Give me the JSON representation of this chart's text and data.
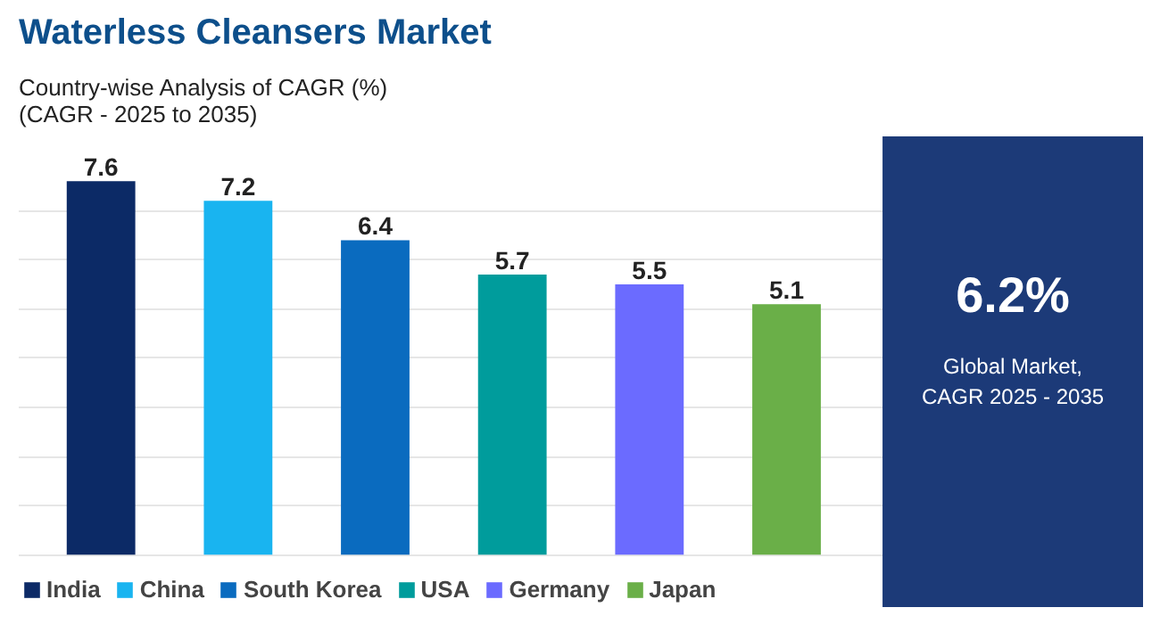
{
  "chart_data": {
    "type": "bar",
    "title": "Waterless Cleansers Market",
    "subtitle": "Country-wise Analysis of CAGR (%)\n(CAGR - 2025 to 2035)",
    "categories": [
      null,
      null,
      null,
      null,
      null,
      null
    ],
    "stacked": true,
    "series": [
      {
        "name": "India",
        "color": "#0c2a66",
        "values": [
          7.6,
          null,
          null,
          null,
          null,
          null
        ]
      },
      {
        "name": "China",
        "color": "#19b4f0",
        "values": [
          null,
          7.2,
          null,
          null,
          null,
          null
        ]
      },
      {
        "name": "South Korea",
        "color": "#0a6bbf",
        "values": [
          null,
          null,
          6.4,
          null,
          null,
          null
        ]
      },
      {
        "name": "USA",
        "color": "#009c9c",
        "values": [
          null,
          null,
          null,
          5.7,
          null,
          null
        ]
      },
      {
        "name": "Germany",
        "color": "#6b6bff",
        "values": [
          null,
          null,
          null,
          null,
          5.5,
          null
        ]
      },
      {
        "name": "Japan",
        "color": "#6aaf48",
        "values": [
          null,
          null,
          null,
          null,
          null,
          5.1
        ]
      }
    ],
    "data_labels": true,
    "legend": "bottom",
    "tick_labels": false,
    "grid": "y",
    "annotations": [
      "6.2%",
      "Global Market, CAGR 2025 - 2035"
    ]
  }
}
